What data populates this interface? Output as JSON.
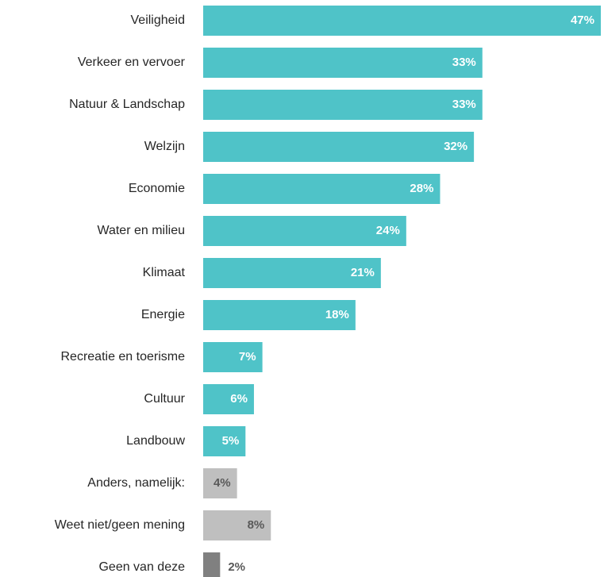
{
  "chart_data": {
    "type": "barh",
    "categories": [
      "Veiligheid",
      "Verkeer en vervoer",
      "Natuur & Landschap",
      "Welzijn",
      "Economie",
      "Water en milieu",
      "Klimaat",
      "Energie",
      "Recreatie en toerisme",
      "Cultuur",
      "Landbouw",
      "Anders, namelijk:",
      "Weet niet/geen mening",
      "Geen van deze"
    ],
    "values": [
      47,
      33,
      33,
      32,
      28,
      24,
      21,
      18,
      7,
      6,
      5,
      4,
      8,
      2
    ],
    "value_labels": [
      "47%",
      "33%",
      "33%",
      "32%",
      "28%",
      "24%",
      "21%",
      "18%",
      "7%",
      "6%",
      "5%",
      "4%",
      "8%",
      "2%"
    ],
    "colors": [
      "#4fc3c8",
      "#4fc3c8",
      "#4fc3c8",
      "#4fc3c8",
      "#4fc3c8",
      "#4fc3c8",
      "#4fc3c8",
      "#4fc3c8",
      "#4fc3c8",
      "#4fc3c8",
      "#4fc3c8",
      "#bfbfbf",
      "#bfbfbf",
      "#808080"
    ]
  }
}
